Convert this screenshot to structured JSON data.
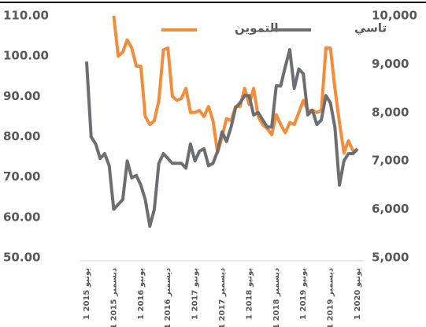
{
  "chart_data": {
    "type": "line",
    "categories": [
      "1 يونيو 2015",
      null,
      null,
      null,
      null,
      null,
      "1 ديسمبر 2015",
      null,
      null,
      null,
      null,
      null,
      "1 يونيو 2016",
      null,
      null,
      null,
      null,
      null,
      "1 ديسمبر 2016",
      null,
      null,
      null,
      null,
      null,
      "1 يونيو 2017",
      null,
      null,
      null,
      null,
      null,
      "1 ديسمبر 2017",
      null,
      null,
      null,
      null,
      null,
      "1 يونيو 2018",
      null,
      null,
      null,
      null,
      null,
      "1 ديسمبر 2018",
      null,
      null,
      null,
      null,
      null,
      "1 يونيو 2019",
      null,
      null,
      null,
      null,
      null,
      "1 ديسمبر 2019",
      null,
      null,
      null,
      null,
      null,
      "1 يونيو 2020"
    ],
    "series": [
      {
        "name": "التموين",
        "color": "#f58c3a",
        "axis": "y",
        "values": [
          null,
          null,
          null,
          null,
          null,
          null,
          110,
          100,
          101,
          104,
          102,
          97.5,
          97.5,
          85,
          83,
          84,
          89,
          101.5,
          102,
          90,
          89,
          89.5,
          92,
          86,
          86,
          86.5,
          85,
          87.5,
          84,
          76,
          80,
          84.5,
          84,
          87.5,
          87.5,
          92,
          88,
          92,
          85,
          83,
          82,
          80.5,
          85.5,
          83,
          81,
          83.5,
          83,
          86,
          89,
          86.5,
          86.5,
          86,
          86.5,
          102,
          102,
          92,
          83.5,
          76,
          79,
          76.5,
          76.5
        ]
      },
      {
        "name": "تاسي",
        "color": "#6d6e71",
        "axis": "y2",
        "values": [
          9050,
          7500,
          7350,
          7050,
          7150,
          6900,
          6000,
          6100,
          6200,
          7000,
          6650,
          6700,
          6500,
          6200,
          5650,
          6000,
          6950,
          7150,
          7050,
          6950,
          6950,
          6950,
          6850,
          7350,
          7000,
          7200,
          7250,
          6900,
          6950,
          7200,
          7600,
          7400,
          7700,
          8100,
          8200,
          8350,
          8350,
          7950,
          8000,
          7850,
          7700,
          7700,
          8550,
          8550,
          8950,
          9300,
          8500,
          8900,
          8800,
          7950,
          8050,
          7750,
          7850,
          8350,
          8200,
          7700,
          6500,
          7000,
          7150,
          7150,
          7250
        ]
      }
    ],
    "ylim": [
      50,
      110
    ],
    "yticks": [
      {
        "value": 50,
        "label": "50.00"
      },
      {
        "value": 60,
        "label": "60.00"
      },
      {
        "value": 70,
        "label": "70.00"
      },
      {
        "value": 80,
        "label": "80.00"
      },
      {
        "value": 90,
        "label": "90.00"
      },
      {
        "value": 100,
        "label": "100.00"
      },
      {
        "value": 110,
        "label": "110.00"
      }
    ],
    "y2lim": [
      5000,
      10000
    ],
    "y2ticks": [
      {
        "value": 5000,
        "label": "5,000"
      },
      {
        "value": 6000,
        "label": "6,000"
      },
      {
        "value": 7000,
        "label": "7,000"
      },
      {
        "value": 8000,
        "label": "8,000"
      },
      {
        "value": 9000,
        "label": "9,000"
      },
      {
        "value": 10000,
        "label": "10,000"
      }
    ],
    "grid": false,
    "legend": "top"
  }
}
